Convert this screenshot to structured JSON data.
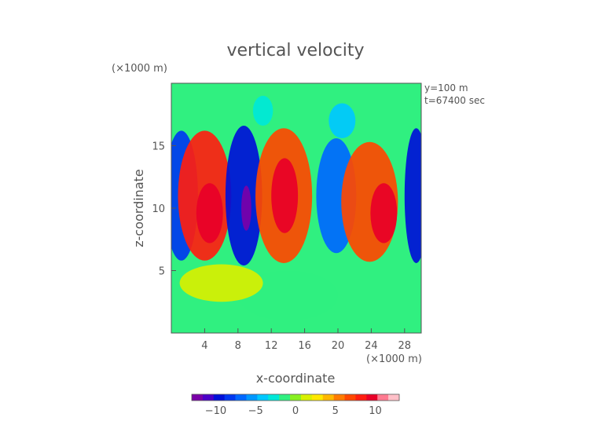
{
  "chart_data": {
    "type": "heatmap",
    "title": "vertical velocity",
    "xlabel": "x-coordinate",
    "ylabel": "z-coordinate",
    "x_unit": "(×1000 m)",
    "y_unit": "(×1000 m)",
    "annotation_line1": "y=100 m",
    "annotation_line2": "t=67400 sec",
    "xlim": [
      0,
      30
    ],
    "ylim": [
      0,
      20
    ],
    "xticks": [
      4,
      8,
      12,
      16,
      20,
      24,
      28
    ],
    "yticks": [
      5,
      10,
      15
    ],
    "colorbar": {
      "range": [
        -13,
        13
      ],
      "ticks": [
        -10,
        -5,
        0,
        5,
        10
      ],
      "colors": [
        "#7a00a8",
        "#4b00c8",
        "#0010d8",
        "#0038f0",
        "#0068ff",
        "#0098ff",
        "#00c8ff",
        "#00e8d8",
        "#30f080",
        "#88f020",
        "#d8f000",
        "#ffe800",
        "#ffb800",
        "#ff7c00",
        "#ff4800",
        "#ff1e10",
        "#e80028",
        "#ff7a90",
        "#ffc0c8"
      ]
    },
    "cells": [
      {
        "x": 1.2,
        "z": 11,
        "rx": 2.0,
        "rz": 5.2,
        "v": -8
      },
      {
        "x": 4.0,
        "z": 11,
        "rx": 3.2,
        "rz": 5.2,
        "v": 8
      },
      {
        "x": 4.6,
        "z": 9.6,
        "rx": 1.6,
        "rz": 2.4,
        "v": 10
      },
      {
        "x": 8.7,
        "z": 11,
        "rx": 2.2,
        "rz": 5.6,
        "v": -10
      },
      {
        "x": 9.0,
        "z": 10,
        "rx": 0.6,
        "rz": 1.8,
        "v": -13
      },
      {
        "x": 13.5,
        "z": 11,
        "rx": 3.4,
        "rz": 5.4,
        "v": 7
      },
      {
        "x": 13.6,
        "z": 11,
        "rx": 1.6,
        "rz": 3,
        "v": 9
      },
      {
        "x": 19.8,
        "z": 11,
        "rx": 2.4,
        "rz": 4.6,
        "v": -7
      },
      {
        "x": 23.8,
        "z": 10.5,
        "rx": 3.4,
        "rz": 4.8,
        "v": 7
      },
      {
        "x": 25.5,
        "z": 9.6,
        "rx": 1.6,
        "rz": 2.4,
        "v": 10
      },
      {
        "x": 29.4,
        "z": 11,
        "rx": 1.4,
        "rz": 5.4,
        "v": -9
      },
      {
        "x": 11.0,
        "z": 17.8,
        "rx": 1.2,
        "rz": 1.2,
        "v": -3
      },
      {
        "x": 20.5,
        "z": 17,
        "rx": 1.6,
        "rz": 1.4,
        "v": -4
      },
      {
        "x": 14,
        "z": 3,
        "rx": 6,
        "rz": 2,
        "v": -1
      },
      {
        "x": 6,
        "z": 4,
        "rx": 5,
        "rz": 1.5,
        "v": 1
      }
    ]
  }
}
